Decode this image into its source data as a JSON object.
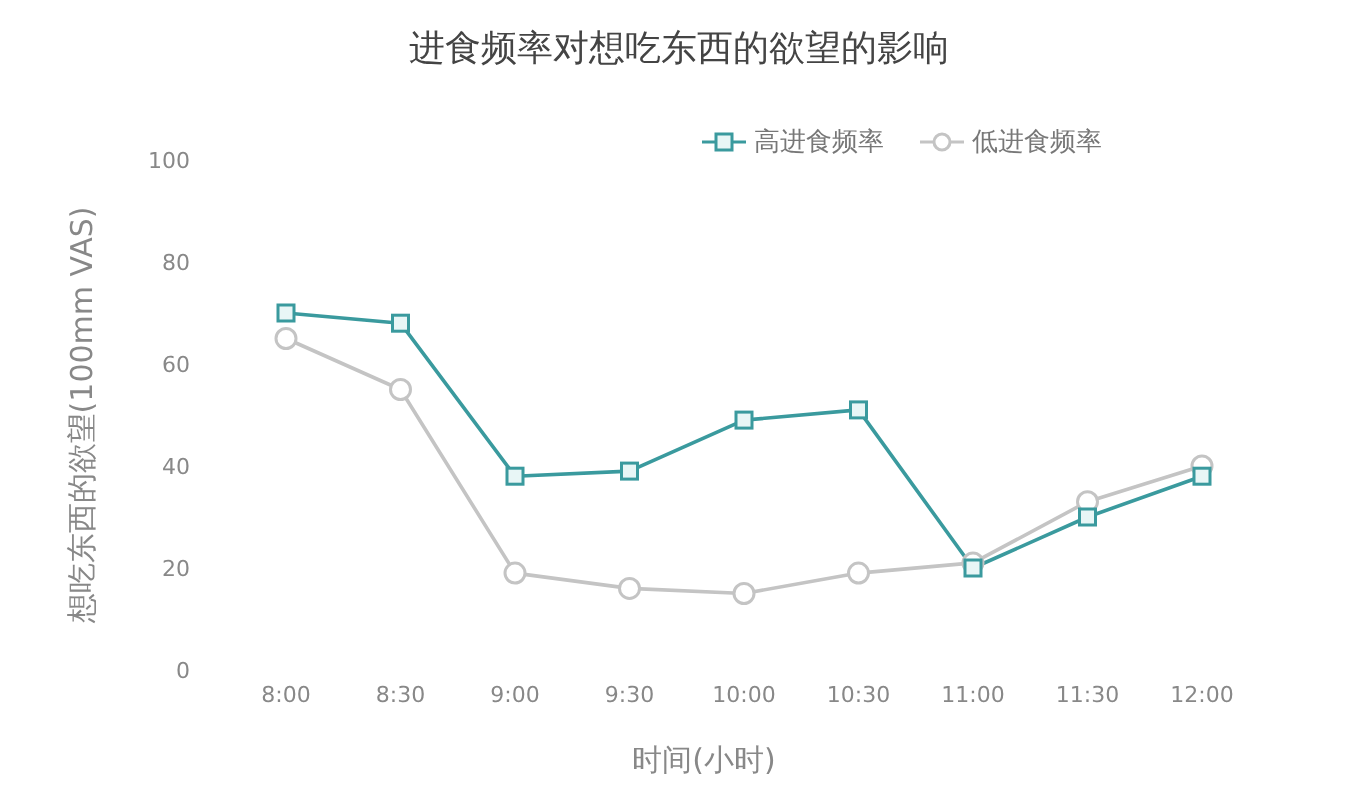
{
  "chart_data": {
    "type": "line",
    "title": "进食频率对想吃东西的欲望的影响",
    "xlabel": "时间(小时)",
    "ylabel": "想吃东西的欲望(100mm VAS)",
    "categories": [
      "8:00",
      "8:30",
      "9:00",
      "9:30",
      "10:00",
      "10:30",
      "11:00",
      "11:30",
      "12:00"
    ],
    "series": [
      {
        "name": "高进食频率",
        "color": "#3a9a9e",
        "marker": "square",
        "values": [
          70,
          68,
          38,
          39,
          49,
          51,
          20,
          30,
          38
        ]
      },
      {
        "name": "低进食频率",
        "color": "#c4c4c4",
        "marker": "circle",
        "values": [
          65,
          55,
          19,
          16,
          15,
          19,
          21,
          33,
          40
        ]
      }
    ],
    "ylim": [
      0,
      100
    ],
    "yticks": [
      0,
      20,
      40,
      60,
      80,
      100
    ],
    "grid": false,
    "legend": "top right",
    "line_style": "solid"
  }
}
